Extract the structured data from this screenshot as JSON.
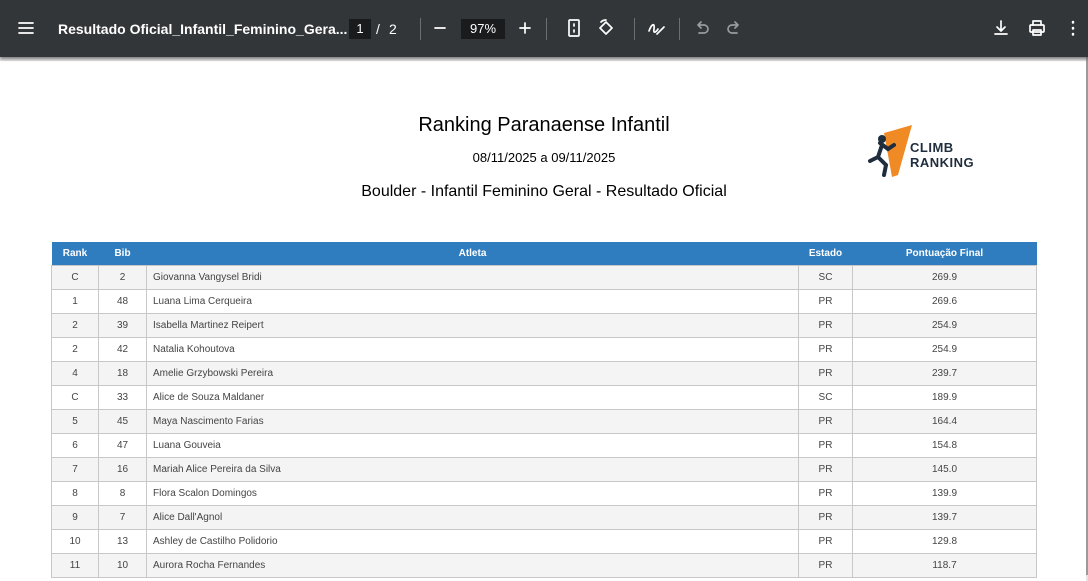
{
  "toolbar": {
    "file_title": "Resultado Oficial_Infantil_Feminino_Gera...",
    "page_current": "1",
    "page_separator": "/",
    "page_total": "2",
    "zoom": "97%"
  },
  "document": {
    "title": "Ranking Paranaense Infantil",
    "dates": "08/11/2025 a 09/11/2025",
    "subtitle": "Boulder - Infantil Feminino Geral - Resultado Oficial",
    "logo": [
      "CLIMB",
      "RANKING"
    ],
    "table": {
      "headers": [
        "Rank",
        "Bib",
        "Atleta",
        "Estado",
        "Pontuação Final"
      ],
      "rows": [
        [
          "C",
          "2",
          "Giovanna Vangysel Bridi",
          "SC",
          "269.9"
        ],
        [
          "1",
          "48",
          "Luana Lima Cerqueira",
          "PR",
          "269.6"
        ],
        [
          "2",
          "39",
          "Isabella Martinez Reipert",
          "PR",
          "254.9"
        ],
        [
          "2",
          "42",
          "Natalia Kohoutova",
          "PR",
          "254.9"
        ],
        [
          "4",
          "18",
          "Amelie Grzybowski Pereira",
          "PR",
          "239.7"
        ],
        [
          "C",
          "33",
          "Alice de Souza Maldaner",
          "SC",
          "189.9"
        ],
        [
          "5",
          "45",
          "Maya Nascimento Farias",
          "PR",
          "164.4"
        ],
        [
          "6",
          "47",
          "Luana Gouveia",
          "PR",
          "154.8"
        ],
        [
          "7",
          "16",
          "Mariah Alice Pereira da Silva",
          "PR",
          "145.0"
        ],
        [
          "8",
          "8",
          "Flora Scalon Domingos",
          "PR",
          "139.9"
        ],
        [
          "9",
          "7",
          "Alice Dall'Agnol",
          "PR",
          "139.7"
        ],
        [
          "10",
          "13",
          "Ashley de Castilho Polidorio",
          "PR",
          "129.8"
        ],
        [
          "11",
          "10",
          "Aurora Rocha Fernandes",
          "PR",
          "118.7"
        ]
      ]
    }
  }
}
